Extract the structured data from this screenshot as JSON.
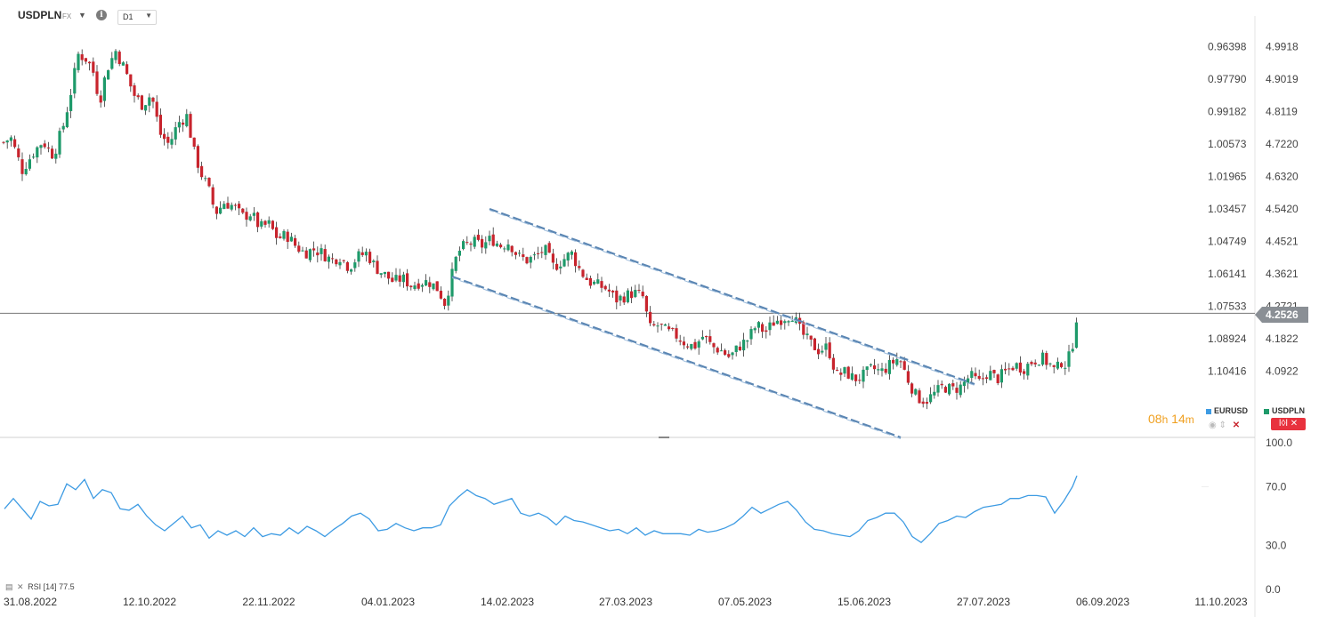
{
  "header": {
    "symbol": "USDPLN",
    "market": "FX",
    "timeframe": "D1"
  },
  "colors": {
    "up": "#1e9a6a",
    "down": "#c8242d",
    "rsi": "#3d9be3",
    "channel": "#5b86b3",
    "price_label_bg": "#8a8f95"
  },
  "icons": [
    "chevron-down-icon",
    "info-icon",
    "eye-icon",
    "arrows-icon",
    "close-icon",
    "indicator-icon"
  ],
  "countdown": {
    "hours": "08",
    "hours_unit": "h",
    "minutes": "14",
    "minutes_unit": "m"
  },
  "legend": {
    "eurusd": {
      "label": "EURUSD",
      "color": "#3d9be3",
      "close": "✕"
    },
    "usdpln": {
      "label": "USDPLN",
      "color": "#1e9a6a",
      "control": "ǀ◊ǀ ✕"
    }
  },
  "price_label": "4.2526",
  "rsi_legend": {
    "name": "RSI",
    "period": "[14]",
    "value": "77.5"
  },
  "chart_data": [
    {
      "type": "candlestick",
      "title": "USDPLN",
      "y_axis_right": {
        "ticks": [
          "4.9918",
          "4.9019",
          "4.8119",
          "4.7220",
          "4.6320",
          "4.5420",
          "4.4521",
          "4.3621",
          "4.2721",
          "4.1822",
          "4.0922"
        ],
        "ylim": [
          4.02,
          5.06
        ]
      },
      "y_axis_secondary": {
        "series": "EURUSD",
        "ticks": [
          "0.96398",
          "0.97790",
          "0.99182",
          "1.00573",
          "1.01965",
          "1.03457",
          "1.04749",
          "1.06141",
          "1.07533",
          "1.08924",
          "1.10416"
        ]
      },
      "x_ticks": [
        "31.08.2022",
        "12.10.2022",
        "22.11.2022",
        "04.01.2023",
        "14.02.2023",
        "27.03.2023",
        "07.05.2023",
        "15.06.2023",
        "27.07.2023",
        "06.09.2023",
        "11.10.2023"
      ],
      "close_path": [
        [
          0,
          4.72
        ],
        [
          12,
          4.74
        ],
        [
          25,
          4.65
        ],
        [
          38,
          4.7
        ],
        [
          48,
          4.73
        ],
        [
          60,
          4.69
        ],
        [
          72,
          4.78
        ],
        [
          80,
          4.87
        ],
        [
          88,
          4.97
        ],
        [
          96,
          4.96
        ],
        [
          104,
          4.93
        ],
        [
          112,
          4.84
        ],
        [
          120,
          4.93
        ],
        [
          130,
          4.98
        ],
        [
          140,
          4.93
        ],
        [
          150,
          4.86
        ],
        [
          160,
          4.83
        ],
        [
          170,
          4.86
        ],
        [
          180,
          4.75
        ],
        [
          190,
          4.72
        ],
        [
          200,
          4.78
        ],
        [
          210,
          4.8
        ],
        [
          218,
          4.7
        ],
        [
          226,
          4.64
        ],
        [
          234,
          4.6
        ],
        [
          242,
          4.53
        ],
        [
          252,
          4.56
        ],
        [
          262,
          4.55
        ],
        [
          272,
          4.52
        ],
        [
          282,
          4.53
        ],
        [
          292,
          4.49
        ],
        [
          302,
          4.5
        ],
        [
          312,
          4.46
        ],
        [
          322,
          4.47
        ],
        [
          332,
          4.44
        ],
        [
          342,
          4.42
        ],
        [
          352,
          4.43
        ],
        [
          362,
          4.42
        ],
        [
          372,
          4.4
        ],
        [
          382,
          4.41
        ],
        [
          392,
          4.38
        ],
        [
          402,
          4.41
        ],
        [
          412,
          4.42
        ],
        [
          422,
          4.38
        ],
        [
          432,
          4.36
        ],
        [
          442,
          4.34
        ],
        [
          452,
          4.35
        ],
        [
          462,
          4.33
        ],
        [
          472,
          4.34
        ],
        [
          482,
          4.34
        ],
        [
          492,
          4.32
        ],
        [
          500,
          4.28
        ],
        [
          508,
          4.36
        ],
        [
          514,
          4.42
        ],
        [
          522,
          4.44
        ],
        [
          532,
          4.45
        ],
        [
          542,
          4.44
        ],
        [
          552,
          4.46
        ],
        [
          562,
          4.44
        ],
        [
          572,
          4.45
        ],
        [
          582,
          4.41
        ],
        [
          592,
          4.4
        ],
        [
          602,
          4.41
        ],
        [
          612,
          4.43
        ],
        [
          622,
          4.38
        ],
        [
          632,
          4.4
        ],
        [
          642,
          4.42
        ],
        [
          652,
          4.37
        ],
        [
          662,
          4.34
        ],
        [
          672,
          4.33
        ],
        [
          682,
          4.32
        ],
        [
          692,
          4.29
        ],
        [
          702,
          4.3
        ],
        [
          712,
          4.31
        ],
        [
          722,
          4.3
        ],
        [
          730,
          4.21
        ],
        [
          740,
          4.22
        ],
        [
          750,
          4.2
        ],
        [
          760,
          4.19
        ],
        [
          770,
          4.17
        ],
        [
          780,
          4.16
        ],
        [
          790,
          4.19
        ],
        [
          800,
          4.16
        ],
        [
          810,
          4.15
        ],
        [
          820,
          4.13
        ],
        [
          830,
          4.16
        ],
        [
          840,
          4.18
        ],
        [
          850,
          4.22
        ],
        [
          860,
          4.2
        ],
        [
          870,
          4.23
        ],
        [
          880,
          4.24
        ],
        [
          890,
          4.25
        ],
        [
          900,
          4.2
        ],
        [
          910,
          4.17
        ],
        [
          920,
          4.15
        ],
        [
          930,
          4.16
        ],
        [
          940,
          4.08
        ],
        [
          950,
          4.09
        ],
        [
          960,
          4.07
        ],
        [
          970,
          4.08
        ],
        [
          980,
          4.1
        ],
        [
          990,
          4.09
        ],
        [
          1000,
          4.11
        ],
        [
          1010,
          4.13
        ],
        [
          1020,
          4.07
        ],
        [
          1030,
          4.02
        ],
        [
          1040,
          4.01
        ],
        [
          1050,
          4.03
        ],
        [
          1060,
          4.05
        ],
        [
          1070,
          4.04
        ],
        [
          1080,
          4.05
        ],
        [
          1090,
          4.08
        ],
        [
          1100,
          4.06
        ],
        [
          1110,
          4.09
        ],
        [
          1120,
          4.07
        ],
        [
          1130,
          4.09
        ],
        [
          1140,
          4.11
        ],
        [
          1150,
          4.1
        ],
        [
          1160,
          4.12
        ],
        [
          1170,
          4.13
        ],
        [
          1180,
          4.11
        ],
        [
          1186,
          4.09
        ],
        [
          1192,
          4.12
        ],
        [
          1198,
          4.11
        ],
        [
          1204,
          4.15
        ],
        [
          1210,
          4.2526
        ]
      ],
      "last_price": 4.2526
    },
    {
      "type": "line",
      "series": [
        {
          "name": "RSI",
          "period": 14
        }
      ],
      "y_ticks": [
        "100.0",
        "70.0",
        "30.0",
        "0.0"
      ],
      "ylim": [
        0,
        100
      ],
      "points": [
        [
          5,
          55
        ],
        [
          15,
          62
        ],
        [
          25,
          55
        ],
        [
          35,
          48
        ],
        [
          45,
          60
        ],
        [
          55,
          57
        ],
        [
          65,
          58
        ],
        [
          75,
          72
        ],
        [
          85,
          68
        ],
        [
          95,
          75
        ],
        [
          105,
          62
        ],
        [
          115,
          68
        ],
        [
          125,
          66
        ],
        [
          135,
          55
        ],
        [
          145,
          54
        ],
        [
          155,
          58
        ],
        [
          165,
          50
        ],
        [
          175,
          44
        ],
        [
          185,
          40
        ],
        [
          195,
          45
        ],
        [
          205,
          50
        ],
        [
          215,
          42
        ],
        [
          225,
          44
        ],
        [
          235,
          35
        ],
        [
          245,
          40
        ],
        [
          255,
          37
        ],
        [
          265,
          40
        ],
        [
          275,
          36
        ],
        [
          285,
          42
        ],
        [
          295,
          36
        ],
        [
          305,
          38
        ],
        [
          315,
          37
        ],
        [
          325,
          42
        ],
        [
          335,
          38
        ],
        [
          345,
          43
        ],
        [
          355,
          40
        ],
        [
          365,
          36
        ],
        [
          375,
          41
        ],
        [
          385,
          45
        ],
        [
          395,
          50
        ],
        [
          405,
          52
        ],
        [
          415,
          48
        ],
        [
          425,
          40
        ],
        [
          435,
          41
        ],
        [
          445,
          45
        ],
        [
          455,
          42
        ],
        [
          465,
          40
        ],
        [
          475,
          42
        ],
        [
          485,
          42
        ],
        [
          495,
          44
        ],
        [
          505,
          57
        ],
        [
          515,
          63
        ],
        [
          525,
          68
        ],
        [
          535,
          64
        ],
        [
          545,
          62
        ],
        [
          555,
          58
        ],
        [
          565,
          60
        ],
        [
          575,
          62
        ],
        [
          585,
          52
        ],
        [
          595,
          50
        ],
        [
          605,
          52
        ],
        [
          615,
          49
        ],
        [
          625,
          44
        ],
        [
          635,
          50
        ],
        [
          645,
          47
        ],
        [
          655,
          46
        ],
        [
          665,
          44
        ],
        [
          675,
          42
        ],
        [
          685,
          40
        ],
        [
          695,
          41
        ],
        [
          705,
          38
        ],
        [
          715,
          42
        ],
        [
          725,
          37
        ],
        [
          735,
          40
        ],
        [
          745,
          38
        ],
        [
          755,
          38
        ],
        [
          765,
          38
        ],
        [
          775,
          37
        ],
        [
          785,
          41
        ],
        [
          795,
          39
        ],
        [
          805,
          40
        ],
        [
          815,
          42
        ],
        [
          825,
          45
        ],
        [
          835,
          50
        ],
        [
          845,
          56
        ],
        [
          855,
          52
        ],
        [
          865,
          55
        ],
        [
          875,
          58
        ],
        [
          885,
          60
        ],
        [
          895,
          54
        ],
        [
          905,
          46
        ],
        [
          915,
          41
        ],
        [
          925,
          40
        ],
        [
          935,
          38
        ],
        [
          945,
          37
        ],
        [
          955,
          36
        ],
        [
          965,
          40
        ],
        [
          975,
          47
        ],
        [
          985,
          49
        ],
        [
          995,
          52
        ],
        [
          1005,
          52
        ],
        [
          1015,
          46
        ],
        [
          1025,
          36
        ],
        [
          1035,
          32
        ],
        [
          1045,
          38
        ],
        [
          1055,
          45
        ],
        [
          1065,
          47
        ],
        [
          1075,
          50
        ],
        [
          1085,
          49
        ],
        [
          1095,
          53
        ],
        [
          1105,
          56
        ],
        [
          1115,
          57
        ],
        [
          1125,
          58
        ],
        [
          1135,
          62
        ],
        [
          1145,
          62
        ],
        [
          1155,
          64
        ],
        [
          1165,
          64
        ],
        [
          1175,
          63
        ],
        [
          1185,
          52
        ],
        [
          1195,
          60
        ],
        [
          1205,
          70
        ],
        [
          1210,
          77.5
        ]
      ],
      "last_value": 77.5
    }
  ]
}
